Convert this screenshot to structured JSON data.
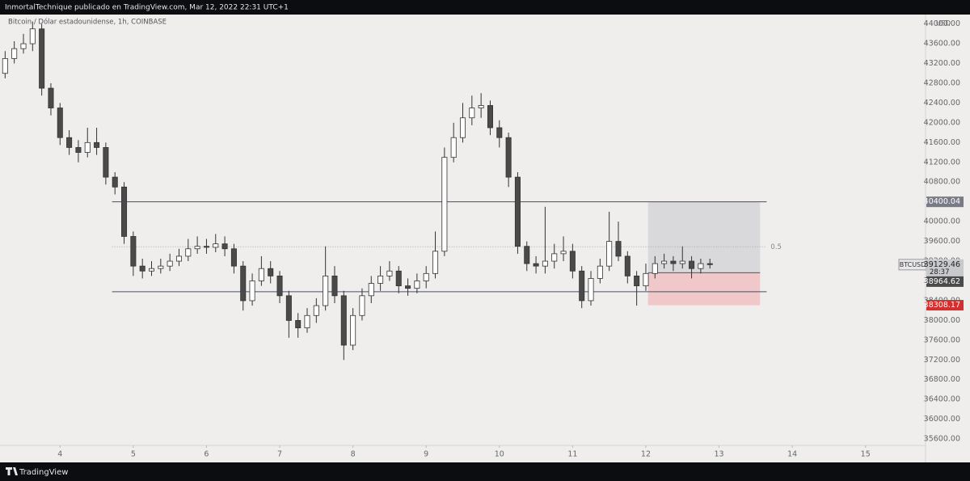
{
  "header": {
    "text": "InmortalTechnique publicado en TradingView.com, Mar 12, 2022 22:31 UTC+1"
  },
  "footer": {
    "brand": "TradingView"
  },
  "chart_data": {
    "type": "candlestick",
    "title": "Bitcoin / Dólar estadounidense, 1h, COINBASE",
    "currency": "USD",
    "symbol": "BTCUSD",
    "countdown": "28:37",
    "x": [
      3.25,
      3.375,
      3.5,
      3.625,
      3.75,
      3.875,
      4.0,
      4.125,
      4.25,
      4.375,
      4.5,
      4.625,
      4.75,
      4.875,
      5.0,
      5.125,
      5.25,
      5.375,
      5.5,
      5.625,
      5.75,
      5.875,
      6.0,
      6.125,
      6.25,
      6.375,
      6.5,
      6.625,
      6.75,
      6.875,
      7.0,
      7.125,
      7.25,
      7.375,
      7.5,
      7.625,
      7.75,
      7.875,
      8.0,
      8.125,
      8.25,
      8.375,
      8.5,
      8.625,
      8.75,
      8.875,
      9.0,
      9.125,
      9.25,
      9.375,
      9.5,
      9.625,
      9.75,
      9.875,
      10.0,
      10.125,
      10.25,
      10.375,
      10.5,
      10.625,
      10.75,
      10.875,
      11.0,
      11.125,
      11.25,
      11.375,
      11.5,
      11.625,
      11.75,
      11.875,
      12.0,
      12.125,
      12.25,
      12.375,
      12.5,
      12.625,
      12.75,
      12.875
    ],
    "open": [
      43000,
      43300,
      43500,
      43600,
      43900,
      42700,
      42300,
      41700,
      41500,
      41400,
      41600,
      41500,
      40900,
      40700,
      39700,
      39100,
      39000,
      39050,
      39100,
      39200,
      39300,
      39450,
      39500,
      39480,
      39550,
      39450,
      39100,
      38400,
      38800,
      39050,
      38900,
      38500,
      38000,
      37850,
      38100,
      38300,
      38900,
      38500,
      37500,
      38100,
      38500,
      38750,
      38900,
      39000,
      38700,
      38650,
      38800,
      38950,
      39400,
      41300,
      41700,
      42100,
      42300,
      42350,
      41900,
      41700,
      40900,
      39500,
      39150,
      39100,
      39200,
      39350,
      39400,
      39000,
      38400,
      38850,
      39100,
      39600,
      39300,
      38900,
      38700,
      38950,
      39150,
      39200,
      39150,
      39200,
      39050,
      39150
    ],
    "high": [
      43450,
      43650,
      43800,
      44050,
      44000,
      42800,
      42400,
      41850,
      41650,
      41900,
      41900,
      41600,
      41000,
      40800,
      39800,
      39250,
      39200,
      39250,
      39350,
      39450,
      39650,
      39700,
      39650,
      39750,
      39700,
      39550,
      39200,
      38950,
      39300,
      39200,
      39000,
      38600,
      38150,
      38250,
      38450,
      39500,
      39100,
      38600,
      38250,
      38650,
      38900,
      39100,
      39200,
      39100,
      38850,
      38950,
      39100,
      39800,
      41500,
      42000,
      42400,
      42550,
      42600,
      42450,
      42050,
      41800,
      41000,
      39600,
      39300,
      40300,
      39550,
      39700,
      39550,
      39100,
      39000,
      39250,
      40200,
      40000,
      39400,
      39000,
      39150,
      39300,
      39350,
      39300,
      39500,
      39300,
      39250,
      39250
    ],
    "low": [
      42900,
      43200,
      43400,
      43450,
      42550,
      42150,
      41550,
      41350,
      41200,
      41300,
      41350,
      40750,
      40550,
      39550,
      38900,
      38850,
      38900,
      38950,
      39000,
      39100,
      39200,
      39350,
      39350,
      39380,
      39300,
      38950,
      38200,
      38300,
      38700,
      38750,
      38350,
      37650,
      37650,
      37750,
      37950,
      38200,
      38350,
      37200,
      37400,
      38000,
      38350,
      38600,
      38800,
      38550,
      38500,
      38550,
      38650,
      38850,
      39300,
      41200,
      41600,
      41950,
      42100,
      41750,
      41500,
      40700,
      39350,
      39000,
      38950,
      38950,
      39050,
      39200,
      38850,
      38250,
      38300,
      38750,
      39000,
      39200,
      38750,
      38300,
      38600,
      38850,
      39050,
      39000,
      39050,
      38850,
      38950,
      39050
    ],
    "close": [
      43300,
      43500,
      43600,
      43900,
      42700,
      42300,
      41700,
      41500,
      41400,
      41600,
      41500,
      40900,
      40700,
      39700,
      39100,
      39000,
      39050,
      39100,
      39200,
      39300,
      39450,
      39500,
      39480,
      39550,
      39450,
      39100,
      38400,
      38800,
      39050,
      38900,
      38500,
      38000,
      37850,
      38100,
      38300,
      38900,
      38500,
      37500,
      38100,
      38500,
      38750,
      38900,
      39000,
      38700,
      38650,
      38800,
      38950,
      39400,
      41300,
      41700,
      42100,
      42300,
      42350,
      41900,
      41700,
      40900,
      39500,
      39150,
      39100,
      39200,
      39350,
      39400,
      39000,
      38400,
      38850,
      39100,
      39600,
      39300,
      38900,
      38700,
      38950,
      39150,
      39200,
      39150,
      39200,
      39050,
      39150,
      39129.46
    ],
    "xlim": [
      3.18,
      15.82
    ],
    "xticks": [
      4,
      5,
      6,
      7,
      8,
      9,
      10,
      11,
      12,
      13,
      14,
      15
    ],
    "ylim": [
      35160,
      44190
    ],
    "yticks": [
      {
        "value": 35600,
        "label": "35600.00"
      },
      {
        "value": 36000,
        "label": "36000.00"
      },
      {
        "value": 36400,
        "label": "36400.00"
      },
      {
        "value": 36800,
        "label": "36800.00"
      },
      {
        "value": 37200,
        "label": "37200.00"
      },
      {
        "value": 37600,
        "label": "37600.00"
      },
      {
        "value": 38000,
        "label": "38000.00"
      },
      {
        "value": 38400,
        "label": "38400.00"
      },
      {
        "value": 38800,
        "label": "38800.00"
      },
      {
        "value": 39200,
        "label": "39200.00"
      },
      {
        "value": 39600,
        "label": "39600.00"
      },
      {
        "value": 40000,
        "label": "40000.00"
      },
      {
        "value": 40400,
        "label": "40400.00"
      },
      {
        "value": 40800,
        "label": "40800.00"
      },
      {
        "value": 41200,
        "label": "41200.00"
      },
      {
        "value": 41600,
        "label": "41600.00"
      },
      {
        "value": 42000,
        "label": "42000.00"
      },
      {
        "value": 42400,
        "label": "42400.00"
      },
      {
        "value": 42800,
        "label": "42800.00"
      },
      {
        "value": 43200,
        "label": "43200.00"
      },
      {
        "value": 43600,
        "label": "43600.00"
      },
      {
        "value": 44000,
        "label": "44000.00"
      }
    ],
    "last_price": 39129.46,
    "horizontal_lines": [
      40400.04,
      38580
    ],
    "line_span": [
      4.71,
      13.65
    ],
    "fib_level": {
      "label": "0.5",
      "price": 39490
    },
    "position": {
      "x": [
        12.03,
        13.56
      ],
      "target": 40400.04,
      "entry": 38964.62,
      "stop": 38308.17
    }
  }
}
